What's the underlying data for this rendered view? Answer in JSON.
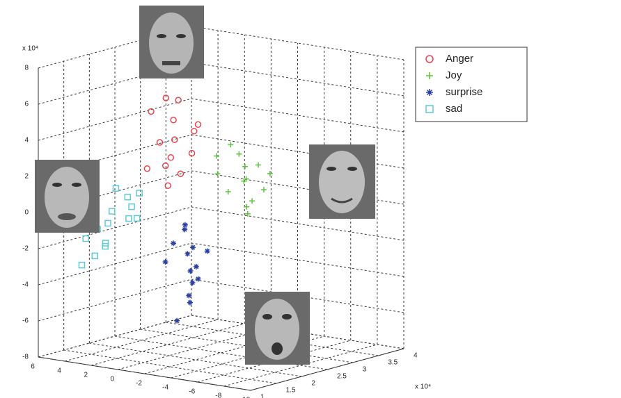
{
  "chart_data": {
    "type": "scatter3d",
    "xlim": [
      -10,
      6
    ],
    "xticks": [
      6,
      4,
      2,
      0,
      -2,
      -4,
      -6,
      -8,
      -10
    ],
    "ylim": [
      1,
      4
    ],
    "yticks": [
      1,
      1.5,
      2,
      2.5,
      3,
      3.5,
      4
    ],
    "zlim": [
      -8,
      8
    ],
    "zticks": [
      8,
      6,
      4,
      2,
      0,
      -2,
      -4,
      -6,
      -8
    ],
    "z_exponent": "x 10⁴",
    "xy_exponent": "x 10⁴",
    "grid": true,
    "series": [
      {
        "name": "Anger",
        "color": "#e8434a",
        "marker": "circle",
        "x": [
          1.5,
          2.5,
          0.5,
          1.8,
          3,
          1,
          2.2,
          0.2,
          1.2,
          2.8,
          1.6,
          0.8,
          2,
          1.4
        ],
        "y": [
          2.5,
          2.3,
          2.7,
          2.4,
          2.6,
          2.2,
          2.8,
          2.5,
          2.4,
          2.3,
          2.6,
          2.7,
          2.5,
          2.4
        ],
        "z": [
          3.4,
          5,
          4.2,
          2,
          3,
          6,
          1.2,
          2.8,
          4.6,
          1.8,
          5.5,
          3.8,
          0.8,
          2.5
        ]
      },
      {
        "name": "Joy",
        "color": "#5fbf3f",
        "marker": "plus",
        "x": [
          -1.8,
          -2.5,
          -1,
          -3,
          -0.5,
          -2,
          -1.5,
          -2.8,
          -0.8,
          -1.2,
          -2.2,
          -3.3,
          -1.7,
          -0.2
        ],
        "y": [
          3,
          3.1,
          2.9,
          3.2,
          2.8,
          3,
          3.1,
          2.9,
          3,
          3.2,
          2.8,
          3,
          3.1,
          2.9
        ],
        "z": [
          1.1,
          2,
          0.5,
          1.5,
          2.5,
          -0.3,
          1.8,
          0.2,
          3,
          1,
          2.8,
          0.8,
          -0.8,
          1.4
        ]
      },
      {
        "name": "surprise",
        "color": "#2a3fa0",
        "marker": "asterisk",
        "x": [
          -1.4,
          -0.8,
          -2,
          -1,
          -1.8,
          -0.5,
          -1.2,
          -2.2,
          -1.6,
          -0.9,
          -1.5,
          -2.5,
          -1.1,
          -0.6
        ],
        "y": [
          2,
          2.1,
          1.9,
          2.2,
          2,
          1.8,
          2.1,
          2,
          1.9,
          2.3,
          2,
          2.1,
          1.8,
          2
        ],
        "z": [
          -2.2,
          -1,
          -3,
          -4,
          -1.8,
          -2.6,
          -5,
          -3.5,
          -0.5,
          -3.2,
          -4.5,
          -2,
          -1.5,
          -6
        ]
      },
      {
        "name": "sad",
        "color": "#5fc8d8",
        "marker": "square",
        "x": [
          4.3,
          5,
          3.5,
          4.8,
          5.5,
          3.8,
          4,
          5.2,
          3.2,
          4.6,
          5.8,
          3,
          4.4,
          2.8
        ],
        "y": [
          2,
          1.9,
          2.1,
          2,
          1.8,
          2.2,
          2,
          1.9,
          2.1,
          2,
          1.8,
          2.2,
          1.9,
          2.1
        ],
        "z": [
          -0.5,
          -1.5,
          0.3,
          -2.5,
          -2,
          -1,
          0.8,
          -3,
          -0.2,
          -1.2,
          -3.5,
          0.5,
          -2.2,
          -0.8
        ]
      }
    ]
  }
}
